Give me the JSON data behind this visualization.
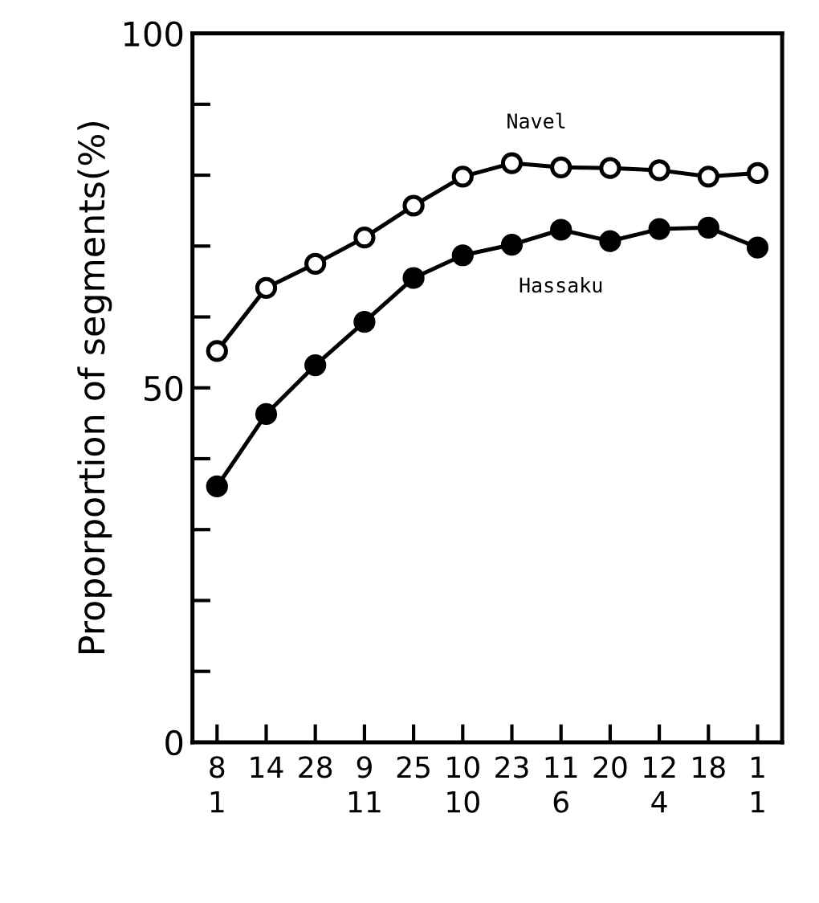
{
  "chart_data": {
    "type": "line",
    "ylabel": "Proporportion of segments(%)",
    "categories": [
      "8\n1",
      "14",
      "28",
      "9\n11",
      "25",
      "10\n10",
      "23",
      "11\n6",
      "20",
      "12\n4",
      "18",
      "1\n1"
    ],
    "series": [
      {
        "name": "Navel",
        "color": "#000000",
        "marker": "circle",
        "values": [
          55.2,
          64.1,
          67.5,
          71.2,
          75.7,
          79.8,
          81.7,
          81.1,
          81.0,
          80.7,
          79.8,
          80.3
        ]
      },
      {
        "name": "Hassaku",
        "color": "#000000",
        "marker": "circle",
        "values": [
          36.1,
          46.3,
          53.2,
          59.3,
          65.5,
          68.7,
          70.2,
          72.3,
          70.7,
          72.4,
          72.6,
          69.8
        ]
      }
    ],
    "ylim": [
      0,
      100
    ],
    "yticks": [
      0,
      {
        "value": 10,
        "label": null
      },
      {
        "value": 20,
        "label": null
      },
      {
        "value": 30,
        "label": null
      },
      {
        "value": 40,
        "label": null
      },
      50,
      {
        "value": 60,
        "label": null
      },
      {
        "value": 70,
        "label": null
      },
      {
        "value": 80,
        "label": null
      },
      {
        "value": 90,
        "label": null
      },
      100
    ],
    "grid": false,
    "legend": false,
    "line_style": "solid"
  }
}
